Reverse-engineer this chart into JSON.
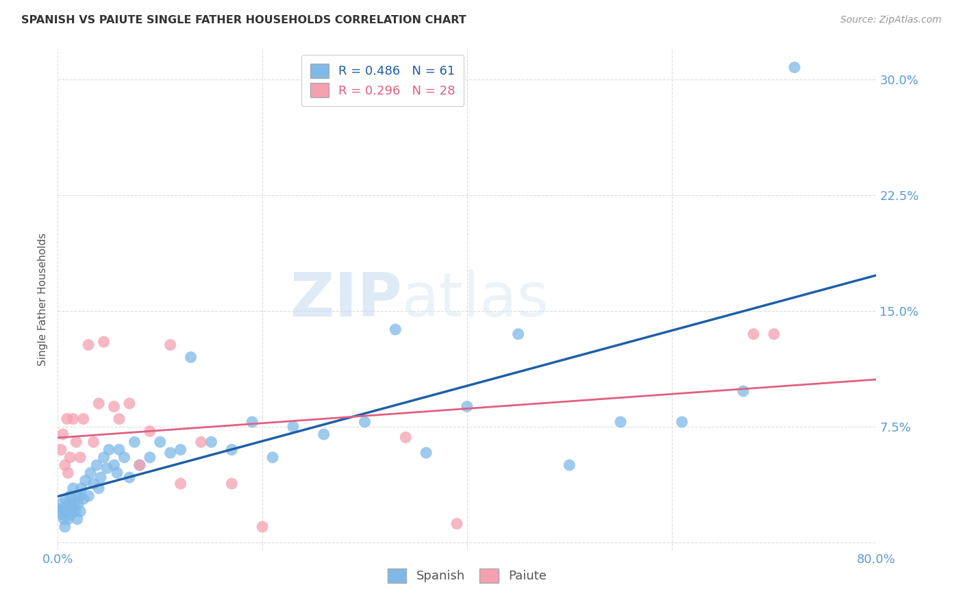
{
  "title": "SPANISH VS PAIUTE SINGLE FATHER HOUSEHOLDS CORRELATION CHART",
  "source": "Source: ZipAtlas.com",
  "ylabel": "Single Father Households",
  "xlim": [
    0.0,
    0.8
  ],
  "ylim": [
    -0.005,
    0.32
  ],
  "x_ticks": [
    0.0,
    0.2,
    0.4,
    0.6,
    0.8
  ],
  "x_tick_labels": [
    "0.0%",
    "",
    "",
    "",
    "80.0%"
  ],
  "y_ticks": [
    0.0,
    0.075,
    0.15,
    0.225,
    0.3
  ],
  "y_tick_labels": [
    "",
    "7.5%",
    "15.0%",
    "22.5%",
    "30.0%"
  ],
  "spanish_R": 0.486,
  "spanish_N": 61,
  "paiute_R": 0.296,
  "paiute_N": 28,
  "spanish_color": "#7EB9E8",
  "paiute_color": "#F4A0B0",
  "spanish_line_color": "#1F5FA6",
  "paiute_line_color": "#E06080",
  "background_color": "#FFFFFF",
  "watermark_zip": "ZIP",
  "watermark_atlas": "atlas",
  "tick_color": "#5B9BD5",
  "title_color": "#333333",
  "ylabel_color": "#555555",
  "source_color": "#999999",
  "grid_color": "#DDDDDD",
  "spanish_x": [
    0.002,
    0.003,
    0.004,
    0.005,
    0.006,
    0.007,
    0.008,
    0.009,
    0.01,
    0.011,
    0.012,
    0.013,
    0.014,
    0.015,
    0.016,
    0.017,
    0.018,
    0.019,
    0.02,
    0.021,
    0.022,
    0.023,
    0.025,
    0.027,
    0.03,
    0.032,
    0.035,
    0.038,
    0.04,
    0.042,
    0.045,
    0.048,
    0.05,
    0.055,
    0.058,
    0.06,
    0.065,
    0.07,
    0.075,
    0.08,
    0.09,
    0.1,
    0.11,
    0.12,
    0.13,
    0.15,
    0.17,
    0.19,
    0.21,
    0.23,
    0.26,
    0.3,
    0.33,
    0.36,
    0.4,
    0.45,
    0.5,
    0.55,
    0.61,
    0.67,
    0.72
  ],
  "spanish_y": [
    0.02,
    0.025,
    0.018,
    0.022,
    0.015,
    0.01,
    0.028,
    0.02,
    0.015,
    0.025,
    0.03,
    0.018,
    0.022,
    0.035,
    0.025,
    0.02,
    0.03,
    0.015,
    0.025,
    0.03,
    0.02,
    0.035,
    0.028,
    0.04,
    0.03,
    0.045,
    0.038,
    0.05,
    0.035,
    0.042,
    0.055,
    0.048,
    0.06,
    0.05,
    0.045,
    0.06,
    0.055,
    0.042,
    0.065,
    0.05,
    0.055,
    0.065,
    0.058,
    0.06,
    0.12,
    0.065,
    0.06,
    0.078,
    0.055,
    0.075,
    0.07,
    0.078,
    0.138,
    0.058,
    0.088,
    0.135,
    0.05,
    0.078,
    0.078,
    0.098,
    0.308
  ],
  "paiute_x": [
    0.003,
    0.005,
    0.007,
    0.009,
    0.01,
    0.012,
    0.015,
    0.018,
    0.022,
    0.025,
    0.03,
    0.035,
    0.04,
    0.045,
    0.055,
    0.06,
    0.07,
    0.08,
    0.09,
    0.11,
    0.12,
    0.14,
    0.17,
    0.2,
    0.34,
    0.39,
    0.68,
    0.7
  ],
  "paiute_y": [
    0.06,
    0.07,
    0.05,
    0.08,
    0.045,
    0.055,
    0.08,
    0.065,
    0.055,
    0.08,
    0.128,
    0.065,
    0.09,
    0.13,
    0.088,
    0.08,
    0.09,
    0.05,
    0.072,
    0.128,
    0.038,
    0.065,
    0.038,
    0.01,
    0.068,
    0.012,
    0.135,
    0.135
  ]
}
